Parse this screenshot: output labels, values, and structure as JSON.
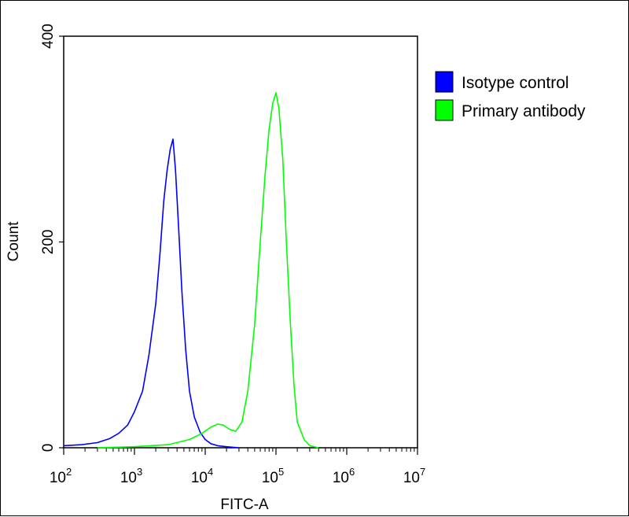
{
  "chart_data": {
    "type": "line",
    "xscale": "log",
    "xlabel": "FITC-A",
    "ylabel": "Count",
    "xlim": [
      100,
      10000000
    ],
    "ylim": [
      0,
      400
    ],
    "x_ticks": [
      {
        "value": 100,
        "base": "10",
        "exp": "2"
      },
      {
        "value": 1000,
        "base": "10",
        "exp": "3"
      },
      {
        "value": 10000,
        "base": "10",
        "exp": "4"
      },
      {
        "value": 100000,
        "base": "10",
        "exp": "5"
      },
      {
        "value": 1000000,
        "base": "10",
        "exp": "6"
      },
      {
        "value": 10000000,
        "base": "10",
        "exp": "7"
      }
    ],
    "y_ticks": [
      {
        "value": 0,
        "label": "0"
      },
      {
        "value": 200,
        "label": "200"
      },
      {
        "value": 400,
        "label": "400"
      }
    ],
    "legend_position": "top-right",
    "series": [
      {
        "name": "Isotype control",
        "color": "#0000ff",
        "x": [
          100,
          180,
          300,
          450,
          600,
          800,
          1000,
          1300,
          1600,
          2000,
          2300,
          2600,
          2900,
          3200,
          3500,
          3800,
          4200,
          4700,
          5300,
          6000,
          7000,
          8500,
          10000,
          12000,
          15000,
          20000,
          30000
        ],
        "y": [
          2,
          3,
          5,
          9,
          14,
          22,
          35,
          55,
          90,
          140,
          190,
          240,
          270,
          290,
          300,
          270,
          215,
          150,
          95,
          55,
          30,
          15,
          8,
          4,
          2,
          1,
          0
        ]
      },
      {
        "name": "Primary antibody",
        "color": "#00ff00",
        "x": [
          300,
          1000,
          3000,
          6000,
          9000,
          12000,
          15000,
          18000,
          22000,
          27000,
          33000,
          40000,
          50000,
          60000,
          70000,
          80000,
          90000,
          100000,
          110000,
          125000,
          140000,
          160000,
          180000,
          200000,
          250000,
          300000,
          400000
        ],
        "y": [
          0,
          1,
          3,
          8,
          14,
          20,
          23,
          22,
          18,
          16,
          25,
          55,
          120,
          200,
          265,
          310,
          335,
          345,
          330,
          280,
          200,
          120,
          60,
          25,
          8,
          2,
          0
        ]
      }
    ]
  }
}
